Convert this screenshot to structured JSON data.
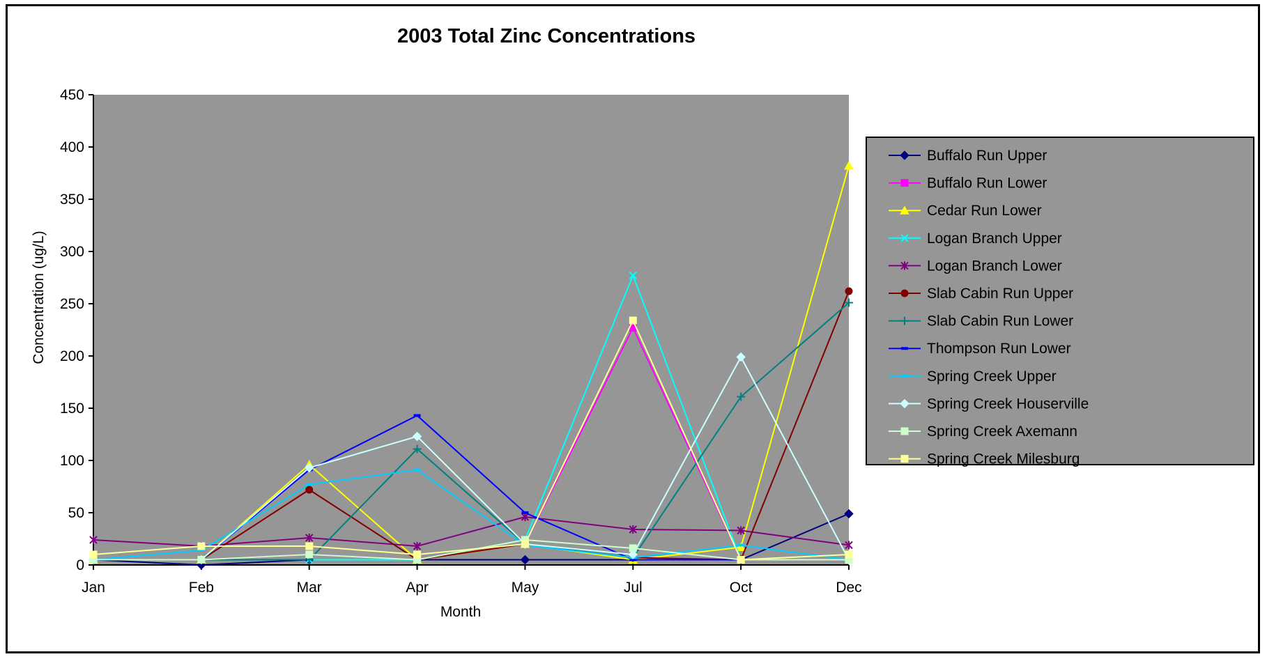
{
  "chart_data": {
    "type": "line",
    "title": "2003 Total Zinc Concentrations",
    "xlabel": "Month",
    "ylabel": "Concentration (ug/L)",
    "categories": [
      "Jan",
      "Feb",
      "Mar",
      "Apr",
      "May",
      "Jul",
      "Oct",
      "Dec"
    ],
    "ylim": [
      0,
      450
    ],
    "yticks": [
      0,
      50,
      100,
      150,
      200,
      250,
      300,
      350,
      400,
      450
    ],
    "grid": false,
    "plot_background": "#969696",
    "legend_position": "right",
    "series": [
      {
        "name": "Buffalo Run Upper",
        "color": "#000080",
        "marker": "diamond",
        "values": [
          5,
          0,
          5,
          5,
          5,
          5,
          5,
          49
        ]
      },
      {
        "name": "Buffalo Run Lower",
        "color": "#FF00FF",
        "marker": "square",
        "values": [
          5,
          5,
          10,
          5,
          20,
          227,
          5,
          5
        ]
      },
      {
        "name": "Cedar Run Lower",
        "color": "#FFFF00",
        "marker": "triangle",
        "values": [
          5,
          5,
          96,
          5,
          20,
          5,
          17,
          382
        ]
      },
      {
        "name": "Logan Branch Upper",
        "color": "#00FFFF",
        "marker": "x",
        "values": [
          5,
          5,
          5,
          5,
          24,
          277,
          5,
          5
        ]
      },
      {
        "name": "Logan Branch Lower",
        "color": "#800080",
        "marker": "star",
        "values": [
          24,
          18,
          26,
          18,
          46,
          34,
          33,
          19
        ]
      },
      {
        "name": "Slab Cabin Run Upper",
        "color": "#800000",
        "marker": "circle",
        "values": [
          5,
          5,
          72,
          5,
          20,
          7,
          5,
          262
        ]
      },
      {
        "name": "Slab Cabin Run Lower",
        "color": "#008080",
        "marker": "plus",
        "values": [
          5,
          5,
          5,
          111,
          20,
          7,
          161,
          251
        ]
      },
      {
        "name": "Thompson Run Lower",
        "color": "#0000FF",
        "marker": "dash",
        "values": [
          5,
          5,
          91,
          143,
          50,
          5,
          5,
          5
        ]
      },
      {
        "name": "Spring Creek Upper",
        "color": "#00CCFF",
        "marker": "dash",
        "values": [
          5,
          14,
          77,
          91,
          19,
          7,
          19,
          5
        ]
      },
      {
        "name": "Spring Creek Houserville",
        "color": "#CCFFFF",
        "marker": "diamond",
        "values": [
          5,
          5,
          93,
          123,
          20,
          10,
          199,
          5
        ]
      },
      {
        "name": "Spring Creek Axemann",
        "color": "#CCFFCC",
        "marker": "square",
        "values": [
          5,
          5,
          10,
          5,
          24,
          16,
          5,
          5
        ]
      },
      {
        "name": "Spring Creek Milesburg",
        "color": "#FFFF99",
        "marker": "square",
        "values": [
          10,
          18,
          18,
          10,
          20,
          234,
          5,
          10
        ]
      }
    ]
  }
}
